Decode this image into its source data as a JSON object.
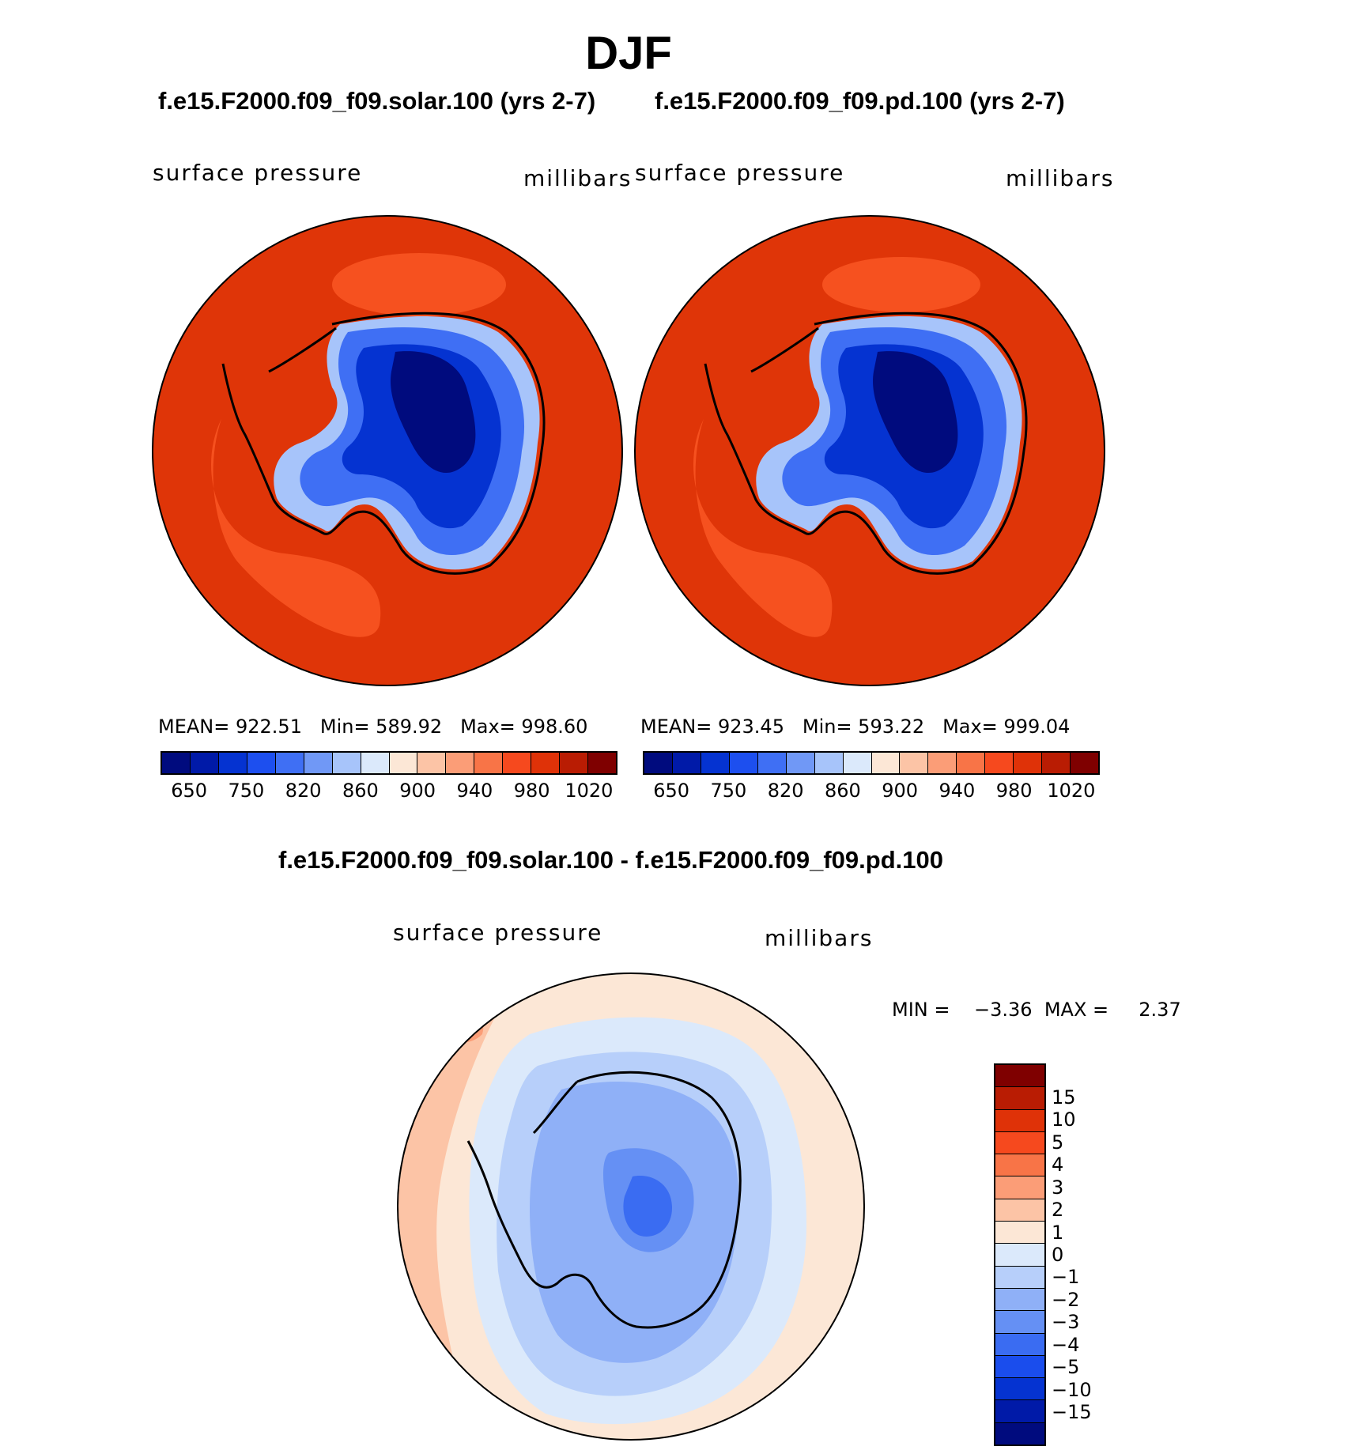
{
  "title": "DJF",
  "panels": [
    {
      "case": "f.e15.F2000.f09_f09.solar.100 (yrs 2-7)",
      "variable": "surface pressure",
      "units": "millibars",
      "mean": "MEAN= 922.51",
      "min": "Min= 589.92",
      "max": "Max= 998.60"
    },
    {
      "case": "f.e15.F2000.f09_f09.pd.100 (yrs 2-7)",
      "variable": "surface pressure",
      "units": "millibars",
      "mean": "MEAN= 923.45",
      "min": "Min= 593.22",
      "max": "Max= 999.04"
    }
  ],
  "abs_colorbar": {
    "colors": [
      "#000b7e",
      "#001aa8",
      "#0533d1",
      "#1d4fef",
      "#3f6ff4",
      "#7098f6",
      "#a7c4fa",
      "#dbe9fb",
      "#fce7d6",
      "#fcc4a6",
      "#fb9d77",
      "#f87447",
      "#f6491e",
      "#df3208",
      "#b91c03",
      "#7f0000"
    ],
    "tick_labels": [
      "650",
      "750",
      "820",
      "860",
      "900",
      "940",
      "980",
      "1020"
    ]
  },
  "diff_panel": {
    "title": "f.e15.F2000.f09_f09.solar.100 - f.e15.F2000.f09_f09.pd.100",
    "variable": "surface pressure",
    "units": "millibars",
    "min_label": "MIN =",
    "min_value": "−3.36",
    "max_label": "MAX =",
    "max_value": "2.37"
  },
  "diff_colorbar": {
    "colors": [
      "#7f0000",
      "#b91c03",
      "#df3208",
      "#f6491e",
      "#f87447",
      "#fb9d77",
      "#fcc4a6",
      "#fce7d6",
      "#dbe9fb",
      "#b7cffa",
      "#8fb0f7",
      "#6590f4",
      "#3a6cf2",
      "#1a4ded",
      "#0533d1",
      "#001aa8",
      "#000b7e"
    ],
    "tick_labels": [
      "15",
      "10",
      "5",
      "4",
      "3",
      "2",
      "1",
      "0",
      "−1",
      "−2",
      "−3",
      "−4",
      "−5",
      "−10",
      "−15"
    ]
  },
  "map_colors": {
    "ocean_abs": "#df3508",
    "ocean_abs_low": "#f6511f",
    "ice_deep": "#000b7e",
    "ice_mid": "#0533d1",
    "ice_light": "#3f6ff4",
    "ice_edge": "#a7c4fa",
    "coast": "#000000"
  }
}
